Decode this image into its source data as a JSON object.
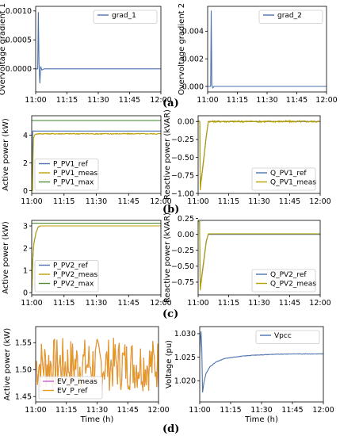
{
  "panel_labels": [
    "(a)",
    "(b)",
    "(c)",
    "(d)"
  ],
  "chart_data": [
    {
      "id": "a_left",
      "type": "line",
      "ylabel": "Overvoltage gradient 1",
      "xlabel": "",
      "xticks": [
        "11:00",
        "11:15",
        "11:30",
        "11:45",
        "12:00"
      ],
      "xlim": [
        0,
        60
      ],
      "ylim": [
        -0.0004,
        0.00108
      ],
      "yticks": [
        0.0,
        0.0005,
        0.001
      ],
      "ytick_labels": [
        "0.0000",
        "0.0005",
        "0.0010"
      ],
      "legend": "top-right",
      "series": [
        {
          "name": "grad_1",
          "color": "#4c72b0",
          "x": [
            0,
            1.0,
            1.3,
            1.6,
            2.0,
            2.4,
            3.0,
            4.0,
            60
          ],
          "y": [
            0,
            0,
            0.00098,
            0.0001,
            -0.00025,
            4e-05,
            -2e-05,
            0,
            0
          ]
        }
      ]
    },
    {
      "id": "a_right",
      "type": "line",
      "ylabel": "Overvoltage gradient 2",
      "xlabel": "",
      "xticks": [
        "11:00",
        "11:15",
        "11:30",
        "11:45",
        "12:00"
      ],
      "xlim": [
        0,
        60
      ],
      "ylim": [
        -0.0004,
        0.0058
      ],
      "yticks": [
        0.0,
        0.002,
        0.004
      ],
      "ytick_labels": [
        "0.000",
        "0.002",
        "0.004"
      ],
      "legend": "top-right",
      "series": [
        {
          "name": "grad_2",
          "color": "#4c72b0",
          "x": [
            0,
            1.5,
            1.8,
            2.1,
            2.6,
            3.2,
            60
          ],
          "y": [
            0,
            0,
            0.0055,
            0.0001,
            -0.0001,
            0,
            0
          ]
        }
      ]
    },
    {
      "id": "b_left",
      "type": "line",
      "ylabel": "Active power (kW)",
      "xlabel": "",
      "xticks": [
        "11:00",
        "11:15",
        "11:30",
        "11:45",
        "12:00"
      ],
      "xlim": [
        0,
        60
      ],
      "ylim": [
        -0.2,
        5.4
      ],
      "yticks": [
        0,
        2,
        4
      ],
      "ytick_labels": [
        "0",
        "2",
        "4"
      ],
      "legend": "bottom-left",
      "series": [
        {
          "name": "P_PV1_ref",
          "color": "#4c72b0",
          "x": [
            0,
            0.5,
            0.8,
            1.2,
            1.8,
            2.5,
            60
          ],
          "y": [
            0,
            4.3,
            4.3,
            4.3,
            4.3,
            4.3,
            4.3
          ]
        },
        {
          "name": "P_PV1_meas",
          "color": "#b8a000",
          "noise": 0.04,
          "x": [
            0,
            0.4,
            0.8,
            1.5,
            2.5,
            60
          ],
          "y": [
            0,
            0,
            3.8,
            4.05,
            4.1,
            4.1
          ]
        },
        {
          "name": "P_PV1_max",
          "color": "#4f8f3a",
          "x": [
            0,
            60
          ],
          "y": [
            5.05,
            5.05
          ]
        }
      ]
    },
    {
      "id": "b_right",
      "type": "line",
      "ylabel": "Reactive power (kVAR)",
      "xlabel": "",
      "xticks": [
        "11:00",
        "11:15",
        "11:30",
        "11:45",
        "12:00"
      ],
      "xlim": [
        0,
        60
      ],
      "ylim": [
        -1.0,
        0.08
      ],
      "yticks": [
        0.0,
        -0.25,
        -0.5,
        -0.75,
        -1.0
      ],
      "ytick_labels": [
        "0.00",
        "−0.25",
        "−0.50",
        "−0.75",
        "−1.00"
      ],
      "legend": "bottom-right",
      "series": [
        {
          "name": "Q_PV1_ref",
          "color": "#4c72b0",
          "x": [
            0,
            0.8,
            1.0,
            2.0,
            3.0,
            4.0,
            5.0,
            60
          ],
          "y": [
            0,
            0,
            -0.9,
            -0.7,
            -0.45,
            -0.2,
            0,
            0
          ]
        },
        {
          "name": "Q_PV1_meas",
          "color": "#b8a000",
          "noise": 0.012,
          "x": [
            0,
            0.8,
            1.0,
            2.0,
            3.0,
            4.0,
            5.0,
            60
          ],
          "y": [
            0,
            0,
            -0.95,
            -0.72,
            -0.47,
            -0.22,
            0,
            0
          ]
        }
      ]
    },
    {
      "id": "c_left",
      "type": "line",
      "ylabel": "Active power (kW)",
      "xlabel": "",
      "xticks": [
        "11:00",
        "11:15",
        "11:30",
        "11:45",
        "12:00"
      ],
      "xlim": [
        0,
        60
      ],
      "ylim": [
        -0.1,
        3.25
      ],
      "yticks": [
        0,
        1,
        2,
        3
      ],
      "ytick_labels": [
        "0",
        "1",
        "2",
        "3"
      ],
      "legend": "bottom-left",
      "series": [
        {
          "name": "P_PV2_ref",
          "color": "#4c72b0",
          "x": [
            0,
            0.5,
            1.0,
            2.0,
            3.0,
            4.0,
            60
          ],
          "y": [
            0,
            1.5,
            2.2,
            2.7,
            2.95,
            3.0,
            3.0
          ]
        },
        {
          "name": "P_PV2_meas",
          "color": "#b8a000",
          "x": [
            0,
            0.5,
            1.0,
            2.0,
            3.0,
            4.0,
            60
          ],
          "y": [
            0,
            1.5,
            2.2,
            2.7,
            2.95,
            3.0,
            3.0
          ]
        },
        {
          "name": "P_PV2_max",
          "color": "#4f8f3a",
          "x": [
            0,
            60
          ],
          "y": [
            3.12,
            3.12
          ]
        }
      ]
    },
    {
      "id": "c_right",
      "type": "line",
      "ylabel": "Reactive power (kVAR)",
      "xlabel": "",
      "xticks": [
        "11:00",
        "11:15",
        "11:30",
        "11:45",
        "12:00"
      ],
      "xlim": [
        0,
        60
      ],
      "ylim": [
        -0.95,
        0.22
      ],
      "yticks": [
        0.25,
        0.0,
        -0.25,
        -0.5,
        -0.75
      ],
      "ytick_labels": [
        "0.25",
        "0.00",
        "−0.25",
        "−0.50",
        "−0.75"
      ],
      "legend": "bottom-right",
      "series": [
        {
          "name": "Q_PV2_ref",
          "color": "#4c72b0",
          "x": [
            0,
            0.7,
            1.0,
            2.0,
            3.0,
            4.0,
            5.0,
            60
          ],
          "y": [
            0.2,
            0.2,
            -0.85,
            -0.6,
            -0.35,
            -0.1,
            0,
            0
          ]
        },
        {
          "name": "Q_PV2_meas",
          "color": "#b8a000",
          "x": [
            0,
            0.7,
            1.0,
            2.0,
            3.0,
            4.0,
            5.0,
            60
          ],
          "y": [
            0.2,
            0.2,
            -0.88,
            -0.63,
            -0.38,
            -0.12,
            0.01,
            0.01
          ]
        }
      ]
    },
    {
      "id": "d_left",
      "type": "line",
      "ylabel": "Active power (kW)",
      "xlabel": "Time (h)",
      "xticks": [
        "11:00",
        "11:15",
        "11:30",
        "11:45",
        "12:00"
      ],
      "xlim": [
        0,
        60
      ],
      "ylim": [
        1.44,
        1.58
      ],
      "yticks": [
        1.45,
        1.5,
        1.55
      ],
      "ytick_labels": [
        "1.45",
        "1.50",
        "1.55"
      ],
      "legend": "bottom-left",
      "series": [
        {
          "name": "EV_P_meas",
          "color": "#c65fd4",
          "random": {
            "mean": 1.51,
            "amp": 0.05,
            "n": 150,
            "seed": 7
          }
        },
        {
          "name": "EV_P_ref",
          "color": "#e69a1a",
          "random": {
            "mean": 1.51,
            "amp": 0.05,
            "n": 150,
            "seed": 7
          }
        }
      ]
    },
    {
      "id": "d_right",
      "type": "line",
      "ylabel": "Voltage (pu)",
      "xlabel": "Time (h)",
      "xticks": [
        "11:00",
        "11:15",
        "11:30",
        "11:45",
        "12:00"
      ],
      "xlim": [
        0,
        60
      ],
      "ylim": [
        1.0155,
        1.0315
      ],
      "yticks": [
        1.02,
        1.025,
        1.03
      ],
      "ytick_labels": [
        "1.020",
        "1.025",
        "1.030"
      ],
      "legend": "top-right",
      "series": [
        {
          "name": "Vpcc",
          "color": "#4c72b0",
          "noise": 5e-05,
          "x": [
            0,
            0.3,
            0.6,
            1.0,
            1.4,
            2.0,
            3.0,
            5.0,
            8.0,
            12.0,
            18.0,
            25.0,
            35.0,
            45.0,
            60.0
          ],
          "y": [
            1.0255,
            1.029,
            1.0305,
            1.027,
            1.0175,
            1.0195,
            1.0215,
            1.023,
            1.024,
            1.0247,
            1.0251,
            1.0254,
            1.0256,
            1.0257,
            1.0257
          ]
        }
      ]
    }
  ]
}
